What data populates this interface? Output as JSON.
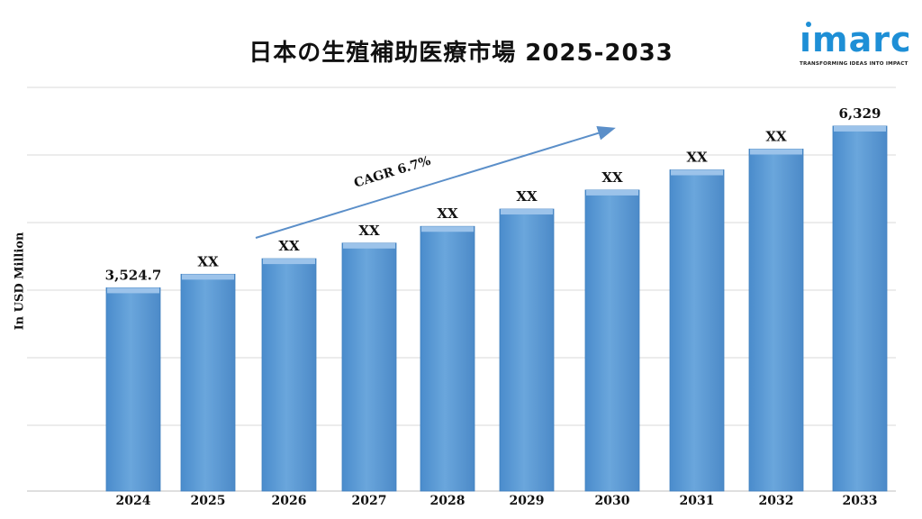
{
  "header": {
    "title": "日本の生殖補助医療市場 2025-2033"
  },
  "logo": {
    "word": "ımarc",
    "tagline": "TRANSFORMING IDEAS INTO IMPACT"
  },
  "colors": {
    "bar": "#5b9bd5",
    "bar_top": "#9cc3ea",
    "bar_edge": "#3f7fbf",
    "arrow": "#5b8fc9",
    "grid": "#d9d9d9",
    "logo": "#1e8fd6"
  },
  "chart_data": {
    "type": "bar",
    "title": "日本の生殖補助医療市場 2025-2033",
    "ylabel": "In USD Million",
    "categories": [
      "2024",
      "2025",
      "2026",
      "2027",
      "2028",
      "2029",
      "2030",
      "2031",
      "2032",
      "2033"
    ],
    "values": [
      3524.7,
      3760,
      4030,
      4300,
      4590,
      4890,
      5220,
      5570,
      5930,
      6329
    ],
    "data_labels": [
      "3,524.7",
      "XX",
      "XX",
      "XX",
      "XX",
      "XX",
      "XX",
      "XX",
      "XX",
      "6,329"
    ],
    "ylim": [
      0,
      7000
    ],
    "grid": true,
    "annotation": {
      "text": "CAGR 6.7%"
    }
  }
}
